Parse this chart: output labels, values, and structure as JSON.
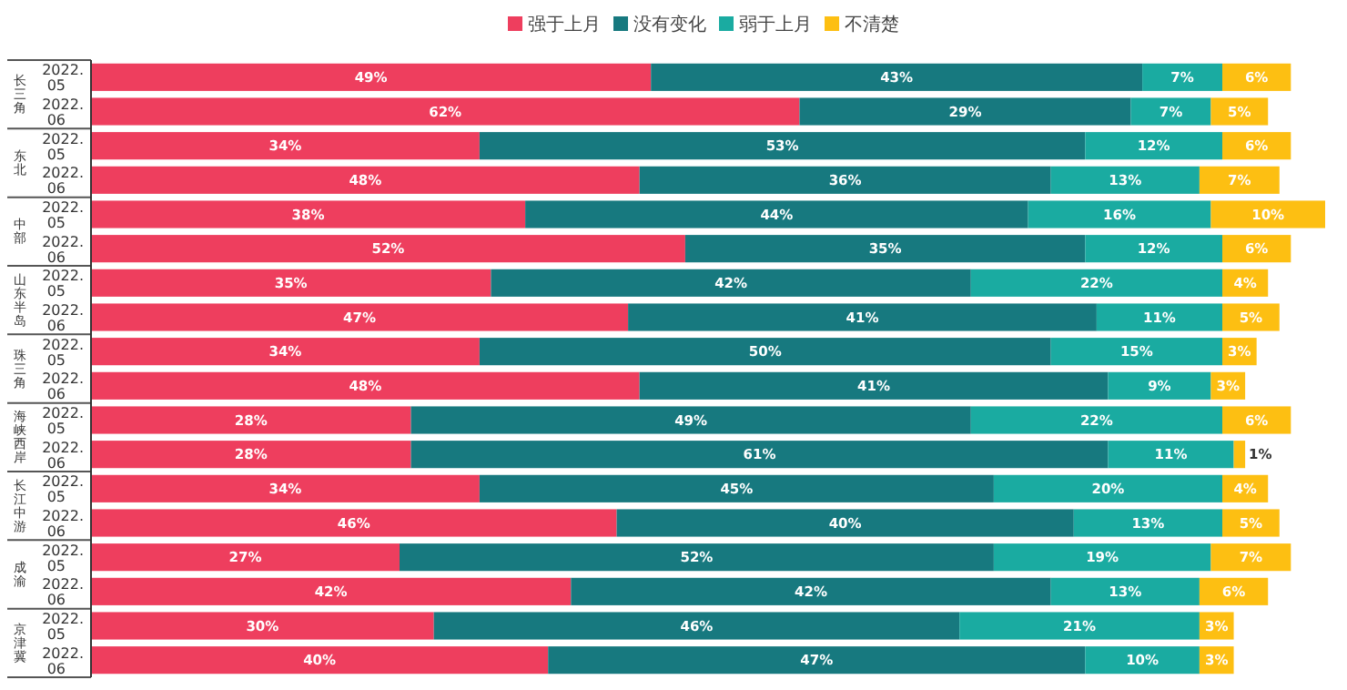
{
  "chart_data": {
    "type": "bar",
    "orientation": "horizontal",
    "stacked": true,
    "legend": "top",
    "tick_labels": "y",
    "categories": [
      "2022.05",
      "2022.06",
      "2022.05",
      "2022.06",
      "2022.05",
      "2022.06",
      "2022.05",
      "2022.06",
      "2022.05",
      "2022.06",
      "2022.05",
      "2022.06",
      "2022.05",
      "2022.06",
      "2022.05",
      "2022.06",
      "2022.05",
      "2022.06"
    ],
    "annotations": [
      "长三角",
      "东北",
      "中部",
      "山东半岛",
      "珠三角",
      "海峡西岸",
      "长江中游",
      "成渝",
      "京津冀"
    ],
    "series": [
      {
        "name": "强于上月",
        "color": "#ee3e5e",
        "values": [
          49,
          62,
          34,
          48,
          38,
          52,
          35,
          47,
          34,
          48,
          28,
          28,
          34,
          46,
          27,
          42,
          30,
          40
        ],
        "value_labels": [
          "49%",
          "62%",
          "34%",
          "48%",
          "38%",
          "52%",
          "35%",
          "47%",
          "34%",
          "48%",
          "28%",
          "28%",
          "34%",
          "46%",
          "27%",
          "42%",
          "30%",
          "40%"
        ]
      },
      {
        "name": "没有变化",
        "color": "#17797f",
        "values": [
          43,
          29,
          53,
          36,
          44,
          35,
          42,
          41,
          50,
          41,
          49,
          61,
          45,
          40,
          52,
          42,
          46,
          47
        ],
        "value_labels": [
          "43%",
          "29%",
          "53%",
          "36%",
          "44%",
          "35%",
          "42%",
          "41%",
          "50%",
          "41%",
          "49%",
          "61%",
          "45%",
          "40%",
          "52%",
          "42%",
          "46%",
          "47%"
        ]
      },
      {
        "name": "弱于上月",
        "color": "#1aaba1",
        "values": [
          7,
          7,
          12,
          13,
          16,
          12,
          22,
          11,
          15,
          9,
          22,
          11,
          20,
          13,
          19,
          13,
          21,
          10
        ],
        "value_labels": [
          "7%",
          "7%",
          "12%",
          "13%",
          "16%",
          "12%",
          "22%",
          "11%",
          "15%",
          "9%",
          "22%",
          "11%",
          "20%",
          "13%",
          "19%",
          "13%",
          "21%",
          "10%"
        ]
      },
      {
        "name": "不清楚",
        "color": "#fdbf12",
        "values": [
          6,
          5,
          6,
          7,
          10,
          6,
          4,
          5,
          3,
          3,
          6,
          1,
          4,
          5,
          7,
          6,
          3,
          3
        ],
        "value_labels": [
          "6%",
          "5%",
          "6%",
          "7%",
          "10%",
          "6%",
          "4%",
          "5%",
          "3%",
          "3%",
          "6%",
          "1%",
          "4%",
          "5%",
          "7%",
          "6%",
          "3%",
          "3%"
        ]
      }
    ]
  }
}
